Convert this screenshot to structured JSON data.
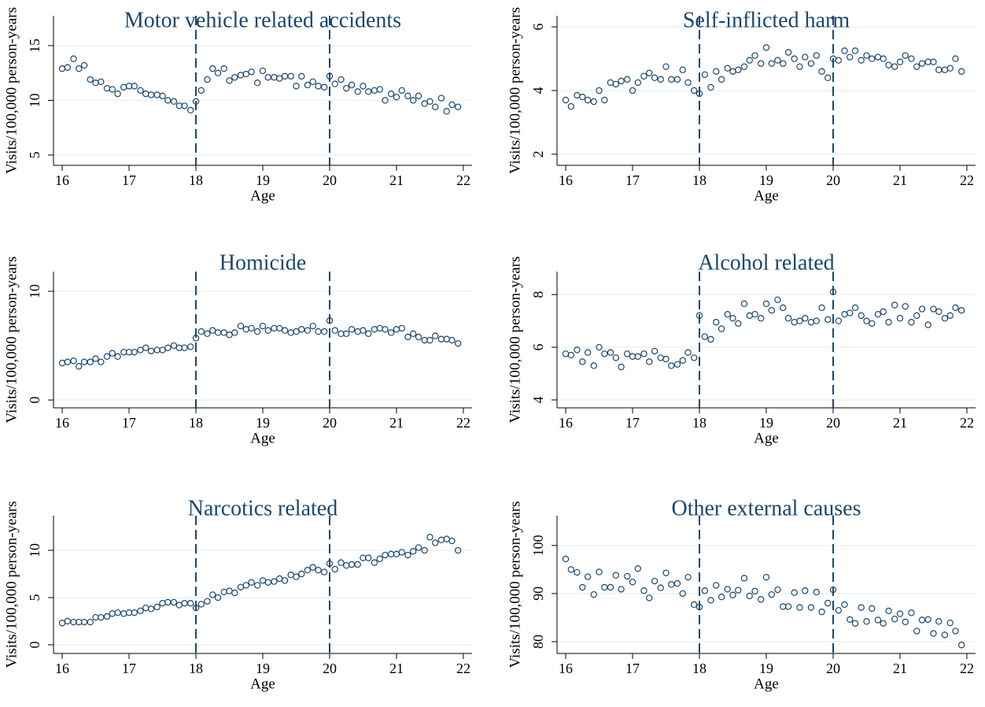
{
  "chart_data": [
    {
      "type": "scatter",
      "title": "Motor vehicle related accidents",
      "x_label": "Age",
      "y_label": "Visits/100,000 person-years",
      "color": "#1a476f",
      "grid": true,
      "xlim": [
        15.87,
        22.13
      ],
      "xticks": [
        16,
        17,
        18,
        19,
        20,
        21,
        22
      ],
      "ylim": [
        4.06,
        17.73
      ],
      "yticks": [
        5,
        10,
        15
      ],
      "vlines": [
        18,
        20
      ],
      "x": [
        16,
        16.08,
        16.17,
        16.25,
        16.33,
        16.42,
        16.5,
        16.58,
        16.67,
        16.75,
        16.83,
        16.92,
        17,
        17.08,
        17.17,
        17.25,
        17.33,
        17.42,
        17.5,
        17.58,
        17.67,
        17.75,
        17.83,
        17.92,
        18,
        18.08,
        18.17,
        18.25,
        18.33,
        18.42,
        18.5,
        18.58,
        18.67,
        18.75,
        18.83,
        18.92,
        19,
        19.08,
        19.17,
        19.25,
        19.33,
        19.42,
        19.5,
        19.58,
        19.67,
        19.75,
        19.83,
        19.92,
        20,
        20.08,
        20.17,
        20.25,
        20.33,
        20.42,
        20.5,
        20.58,
        20.67,
        20.75,
        20.83,
        20.92,
        21,
        21.08,
        21.17,
        21.25,
        21.33,
        21.42,
        21.5,
        21.58,
        21.67,
        21.75,
        21.83,
        21.92
      ],
      "values": [
        12.9,
        13.0,
        13.8,
        12.9,
        13.2,
        11.9,
        11.6,
        11.7,
        11.1,
        11.0,
        10.6,
        11.2,
        11.3,
        11.3,
        10.9,
        10.6,
        10.5,
        10.5,
        10.4,
        10.0,
        9.9,
        9.5,
        9.5,
        9.1,
        9.9,
        10.9,
        11.9,
        12.9,
        12.5,
        12.9,
        11.8,
        12.1,
        12.3,
        12.4,
        12.6,
        11.6,
        12.7,
        12.1,
        12.1,
        12.0,
        12.2,
        12.2,
        11.3,
        12.2,
        11.4,
        11.7,
        11.3,
        11.2,
        12.2,
        11.5,
        11.9,
        11.1,
        11.4,
        10.8,
        11.3,
        10.8,
        10.9,
        11.0,
        10.0,
        10.6,
        10.3,
        10.9,
        10.4,
        10.0,
        10.4,
        9.7,
        9.9,
        9.4,
        10.2,
        9.0,
        9.6,
        9.4
      ]
    },
    {
      "type": "scatter",
      "title": "Self-inflicted harm",
      "x_label": "Age",
      "y_label": "Visits/100,000 person-years",
      "color": "#1a476f",
      "grid": true,
      "xlim": [
        15.87,
        22.13
      ],
      "xticks": [
        16,
        17,
        18,
        19,
        20,
        21,
        22
      ],
      "ylim": [
        1.65,
        6.35
      ],
      "yticks": [
        2,
        4,
        6
      ],
      "vlines": [
        18,
        20
      ],
      "x": [
        16,
        16.08,
        16.17,
        16.25,
        16.33,
        16.42,
        16.5,
        16.58,
        16.67,
        16.75,
        16.83,
        16.92,
        17,
        17.08,
        17.17,
        17.25,
        17.33,
        17.42,
        17.5,
        17.58,
        17.67,
        17.75,
        17.83,
        17.92,
        18,
        18.08,
        18.17,
        18.25,
        18.33,
        18.42,
        18.5,
        18.58,
        18.67,
        18.75,
        18.83,
        18.92,
        19,
        19.08,
        19.17,
        19.25,
        19.33,
        19.42,
        19.5,
        19.58,
        19.67,
        19.75,
        19.83,
        19.92,
        20,
        20.08,
        20.17,
        20.25,
        20.33,
        20.42,
        20.5,
        20.58,
        20.67,
        20.75,
        20.83,
        20.92,
        21,
        21.08,
        21.17,
        21.25,
        21.33,
        21.42,
        21.5,
        21.58,
        21.67,
        21.75,
        21.83,
        21.92
      ],
      "values": [
        3.7,
        3.5,
        3.85,
        3.8,
        3.7,
        3.65,
        4.0,
        3.7,
        4.25,
        4.2,
        4.3,
        4.35,
        4.0,
        4.25,
        4.45,
        4.55,
        4.4,
        4.35,
        4.75,
        4.35,
        4.35,
        4.65,
        4.25,
        4.0,
        3.9,
        4.5,
        4.1,
        4.6,
        4.35,
        4.7,
        4.6,
        4.65,
        4.75,
        4.95,
        5.1,
        4.85,
        5.35,
        4.85,
        4.95,
        4.85,
        5.2,
        5.0,
        4.75,
        5.05,
        4.85,
        5.1,
        4.6,
        4.4,
        5.0,
        4.95,
        5.25,
        5.05,
        5.25,
        4.95,
        5.1,
        5.0,
        5.05,
        5.0,
        4.8,
        4.75,
        4.9,
        5.1,
        5.0,
        4.75,
        4.85,
        4.9,
        4.9,
        4.65,
        4.65,
        4.7,
        5.0,
        4.6
      ]
    },
    {
      "type": "scatter",
      "title": "Homicide",
      "x_label": "Age",
      "y_label": "Visits/100,000 person-years",
      "color": "#1a476f",
      "grid": true,
      "xlim": [
        15.87,
        22.13
      ],
      "xticks": [
        16,
        17,
        18,
        19,
        20,
        21,
        22
      ],
      "ylim": [
        -0.72,
        11.81
      ],
      "yticks": [
        0,
        10
      ],
      "vlines": [
        18,
        20
      ],
      "x": [
        16,
        16.08,
        16.17,
        16.25,
        16.33,
        16.42,
        16.5,
        16.58,
        16.67,
        16.75,
        16.83,
        16.92,
        17,
        17.08,
        17.17,
        17.25,
        17.33,
        17.42,
        17.5,
        17.58,
        17.67,
        17.75,
        17.83,
        17.92,
        18,
        18.08,
        18.17,
        18.25,
        18.33,
        18.42,
        18.5,
        18.58,
        18.67,
        18.75,
        18.83,
        18.92,
        19,
        19.08,
        19.17,
        19.25,
        19.33,
        19.42,
        19.5,
        19.58,
        19.67,
        19.75,
        19.83,
        19.92,
        20,
        20.08,
        20.17,
        20.25,
        20.33,
        20.42,
        20.5,
        20.58,
        20.67,
        20.75,
        20.83,
        20.92,
        21,
        21.08,
        21.17,
        21.25,
        21.33,
        21.42,
        21.5,
        21.58,
        21.67,
        21.75,
        21.83,
        21.92
      ],
      "values": [
        3.4,
        3.5,
        3.6,
        3.1,
        3.5,
        3.5,
        3.8,
        3.5,
        4.0,
        4.3,
        4.0,
        4.4,
        4.4,
        4.4,
        4.6,
        4.8,
        4.5,
        4.6,
        4.6,
        4.8,
        5.0,
        4.8,
        4.8,
        4.9,
        5.7,
        6.3,
        6.1,
        6.4,
        6.2,
        6.2,
        6.0,
        6.2,
        6.8,
        6.5,
        6.6,
        6.3,
        6.8,
        6.4,
        6.6,
        6.6,
        6.4,
        6.2,
        6.3,
        6.5,
        6.4,
        6.8,
        6.3,
        6.3,
        7.3,
        6.4,
        6.1,
        6.1,
        6.5,
        6.3,
        6.4,
        6.1,
        6.5,
        6.6,
        6.5,
        6.2,
        6.5,
        6.6,
        5.8,
        6.1,
        5.8,
        5.5,
        5.5,
        5.9,
        5.6,
        5.6,
        5.5,
        5.2
      ]
    },
    {
      "type": "scatter",
      "title": "Alcohol related",
      "x_label": "Age",
      "y_label": "Visits/100,000 person-years",
      "color": "#1a476f",
      "grid": true,
      "xlim": [
        15.87,
        22.13
      ],
      "xticks": [
        16,
        17,
        18,
        19,
        20,
        21,
        22
      ],
      "ylim": [
        3.7,
        8.87
      ],
      "yticks": [
        4,
        6,
        8
      ],
      "vlines": [
        18,
        20
      ],
      "x": [
        16,
        16.08,
        16.17,
        16.25,
        16.33,
        16.42,
        16.5,
        16.58,
        16.67,
        16.75,
        16.83,
        16.92,
        17,
        17.08,
        17.17,
        17.25,
        17.33,
        17.42,
        17.5,
        17.58,
        17.67,
        17.75,
        17.83,
        17.92,
        18,
        18.08,
        18.17,
        18.25,
        18.33,
        18.42,
        18.5,
        18.58,
        18.67,
        18.75,
        18.83,
        18.92,
        19,
        19.08,
        19.17,
        19.25,
        19.33,
        19.42,
        19.5,
        19.58,
        19.67,
        19.75,
        19.83,
        19.92,
        20,
        20.08,
        20.17,
        20.25,
        20.33,
        20.42,
        20.5,
        20.58,
        20.67,
        20.75,
        20.83,
        20.92,
        21,
        21.08,
        21.17,
        21.25,
        21.33,
        21.42,
        21.5,
        21.58,
        21.67,
        21.75,
        21.83,
        21.92
      ],
      "values": [
        5.75,
        5.7,
        5.9,
        5.45,
        5.8,
        5.3,
        6.0,
        5.75,
        5.8,
        5.6,
        5.25,
        5.75,
        5.65,
        5.65,
        5.75,
        5.45,
        5.85,
        5.6,
        5.55,
        5.3,
        5.35,
        5.5,
        5.8,
        5.6,
        7.2,
        6.4,
        6.3,
        6.95,
        6.7,
        7.25,
        7.1,
        6.9,
        7.65,
        7.2,
        7.25,
        7.1,
        7.65,
        7.4,
        7.8,
        7.5,
        7.1,
        6.95,
        7.0,
        7.1,
        6.95,
        7.0,
        7.5,
        7.05,
        8.1,
        7.0,
        7.25,
        7.3,
        7.5,
        7.2,
        7.0,
        6.9,
        7.25,
        7.35,
        6.95,
        7.6,
        7.1,
        7.55,
        6.95,
        7.2,
        7.45,
        6.85,
        7.45,
        7.35,
        7.1,
        7.2,
        7.5,
        7.4
      ]
    },
    {
      "type": "scatter",
      "title": "Narcotics related",
      "x_label": "Age",
      "y_label": "Visits/100,000 person-years",
      "color": "#1a476f",
      "grid": true,
      "xlim": [
        15.87,
        22.13
      ],
      "xticks": [
        16,
        17,
        18,
        19,
        20,
        21,
        22
      ],
      "ylim": [
        -0.92,
        13.67
      ],
      "yticks": [
        0,
        5,
        10
      ],
      "vlines": [
        18,
        20
      ],
      "x": [
        16,
        16.08,
        16.17,
        16.25,
        16.33,
        16.42,
        16.5,
        16.58,
        16.67,
        16.75,
        16.83,
        16.92,
        17,
        17.08,
        17.17,
        17.25,
        17.33,
        17.42,
        17.5,
        17.58,
        17.67,
        17.75,
        17.83,
        17.92,
        18,
        18.08,
        18.17,
        18.25,
        18.33,
        18.42,
        18.5,
        18.58,
        18.67,
        18.75,
        18.83,
        18.92,
        19,
        19.08,
        19.17,
        19.25,
        19.33,
        19.42,
        19.5,
        19.58,
        19.67,
        19.75,
        19.83,
        19.92,
        20,
        20.08,
        20.17,
        20.25,
        20.33,
        20.42,
        20.5,
        20.58,
        20.67,
        20.75,
        20.83,
        20.92,
        21,
        21.08,
        21.17,
        21.25,
        21.33,
        21.42,
        21.5,
        21.58,
        21.67,
        21.75,
        21.83,
        21.92
      ],
      "values": [
        2.3,
        2.5,
        2.4,
        2.4,
        2.4,
        2.4,
        2.9,
        2.9,
        3.0,
        3.3,
        3.4,
        3.3,
        3.4,
        3.4,
        3.6,
        3.9,
        3.8,
        4.0,
        4.4,
        4.5,
        4.5,
        4.2,
        4.4,
        4.4,
        3.9,
        4.3,
        4.6,
        5.3,
        5.0,
        5.6,
        5.7,
        5.5,
        6.1,
        6.3,
        6.6,
        6.3,
        6.8,
        6.6,
        6.7,
        7.0,
        6.8,
        7.4,
        7.2,
        7.5,
        7.9,
        8.2,
        7.9,
        7.7,
        8.6,
        8.0,
        8.7,
        8.4,
        8.5,
        8.5,
        9.2,
        9.2,
        8.7,
        9.1,
        9.5,
        9.6,
        9.6,
        9.8,
        9.5,
        9.9,
        10.3,
        10.0,
        11.4,
        10.8,
        11.1,
        11.2,
        11.0,
        10.0
      ]
    },
    {
      "type": "scatter",
      "title": "Other external causes",
      "x_label": "Age",
      "y_label": "Visits/100,000 person-years",
      "color": "#1a476f",
      "grid": true,
      "xlim": [
        15.87,
        22.13
      ],
      "xticks": [
        16,
        17,
        18,
        19,
        20,
        21,
        22
      ],
      "ylim": [
        77.54,
        106.2
      ],
      "yticks": [
        80,
        90,
        100
      ],
      "vlines": [
        18,
        20
      ],
      "x": [
        16,
        16.08,
        16.17,
        16.25,
        16.33,
        16.42,
        16.5,
        16.58,
        16.67,
        16.75,
        16.83,
        16.92,
        17,
        17.08,
        17.17,
        17.25,
        17.33,
        17.42,
        17.5,
        17.58,
        17.67,
        17.75,
        17.83,
        17.92,
        18,
        18.08,
        18.17,
        18.25,
        18.33,
        18.42,
        18.5,
        18.58,
        18.67,
        18.75,
        18.83,
        18.92,
        19,
        19.08,
        19.17,
        19.25,
        19.33,
        19.42,
        19.5,
        19.58,
        19.67,
        19.75,
        19.83,
        19.92,
        20,
        20.08,
        20.17,
        20.25,
        20.33,
        20.42,
        20.5,
        20.58,
        20.67,
        20.75,
        20.83,
        20.92,
        21,
        21.08,
        21.17,
        21.25,
        21.33,
        21.42,
        21.5,
        21.58,
        21.67,
        21.75,
        21.83,
        21.92
      ],
      "values": [
        97.2,
        95.0,
        94.4,
        91.3,
        93.5,
        89.8,
        94.5,
        91.3,
        91.3,
        93.8,
        90.9,
        93.6,
        92.4,
        95.2,
        90.6,
        89.1,
        92.6,
        91.2,
        94.3,
        91.9,
        92.1,
        90.0,
        93.4,
        87.7,
        87.2,
        90.6,
        88.6,
        91.7,
        89.3,
        90.9,
        89.7,
        90.7,
        93.2,
        89.5,
        90.5,
        88.8,
        93.4,
        89.8,
        90.8,
        87.3,
        87.3,
        90.2,
        87.1,
        90.6,
        87.1,
        90.3,
        86.2,
        88.0,
        90.8,
        86.5,
        87.7,
        84.6,
        83.8,
        87.1,
        84.2,
        86.9,
        84.5,
        83.8,
        86.4,
        84.7,
        85.8,
        84.1,
        86.0,
        82.2,
        84.5,
        84.6,
        81.7,
        84.2,
        81.4,
        83.9,
        82.2,
        79.3
      ]
    }
  ]
}
